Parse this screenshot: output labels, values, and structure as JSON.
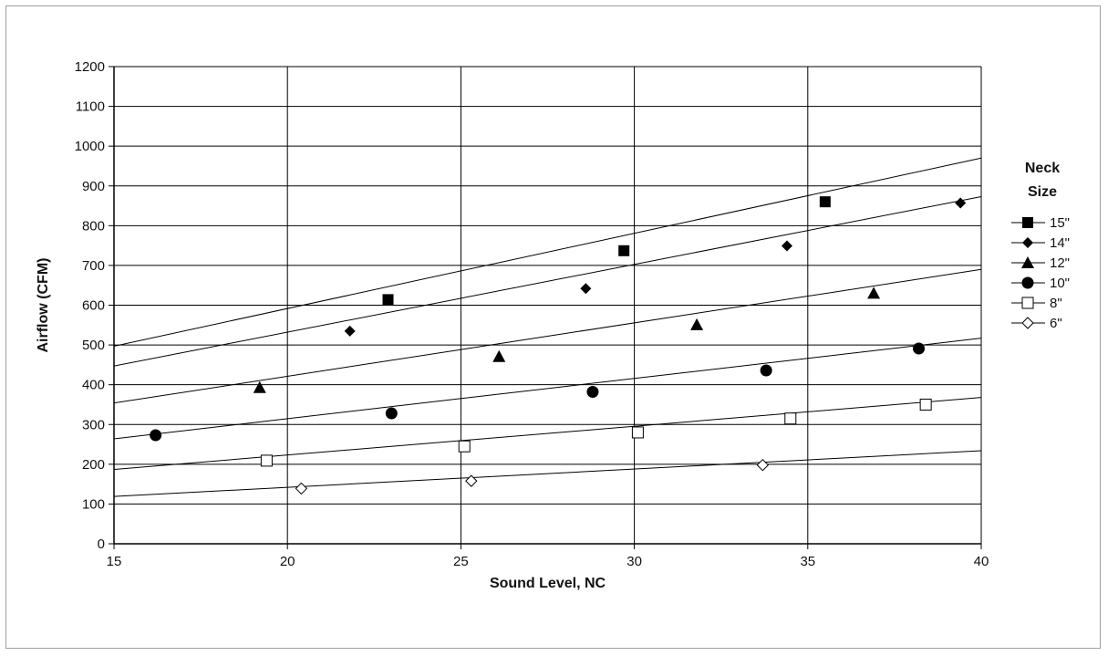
{
  "chart_data": {
    "type": "scatter",
    "xlabel": "Sound Level, NC",
    "ylabel": "Airflow (CFM)",
    "xlim": [
      15,
      40
    ],
    "ylim": [
      0,
      1200
    ],
    "x_ticks": [
      15,
      20,
      25,
      30,
      35,
      40
    ],
    "y_ticks": [
      0,
      100,
      200,
      300,
      400,
      500,
      600,
      700,
      800,
      900,
      1000,
      1100,
      1200
    ],
    "grid": true,
    "trendlines": true,
    "legend": {
      "title_line1": "Neck",
      "title_line2": "Size",
      "position": "right"
    },
    "series": [
      {
        "name": "15\"",
        "marker": "filled-square",
        "x": [
          22.9,
          29.7,
          35.5
        ],
        "y": [
          614,
          737,
          860
        ],
        "trend": {
          "x": [
            15,
            40
          ],
          "y": [
            497,
            970
          ]
        }
      },
      {
        "name": "14\"",
        "marker": "filled-diamond",
        "x": [
          21.8,
          28.6,
          34.4,
          39.4
        ],
        "y": [
          535,
          642,
          749,
          857
        ],
        "trend": {
          "x": [
            15,
            40
          ],
          "y": [
            447,
            873
          ]
        }
      },
      {
        "name": "12\"",
        "marker": "filled-triangle",
        "x": [
          19.2,
          26.1,
          31.8,
          36.9
        ],
        "y": [
          393,
          471,
          551,
          630
        ],
        "trend": {
          "x": [
            15,
            40
          ],
          "y": [
            354,
            690
          ]
        }
      },
      {
        "name": "10\"",
        "marker": "filled-circle",
        "x": [
          16.2,
          23.0,
          28.8,
          33.8,
          38.2
        ],
        "y": [
          273,
          328,
          382,
          436,
          491
        ],
        "trend": {
          "x": [
            15,
            40
          ],
          "y": [
            264,
            517
          ]
        }
      },
      {
        "name": "8\"",
        "marker": "open-square",
        "x": [
          19.4,
          25.1,
          30.1,
          34.5,
          38.4
        ],
        "y": [
          209,
          245,
          280,
          315,
          350
        ],
        "trend": {
          "x": [
            15,
            40
          ],
          "y": [
            187,
            368
          ]
        }
      },
      {
        "name": "6\"",
        "marker": "open-diamond",
        "x": [
          20.4,
          25.3,
          33.7
        ],
        "y": [
          139,
          158,
          198
        ],
        "trend": {
          "x": [
            15,
            40
          ],
          "y": [
            119,
            234
          ]
        }
      }
    ]
  }
}
